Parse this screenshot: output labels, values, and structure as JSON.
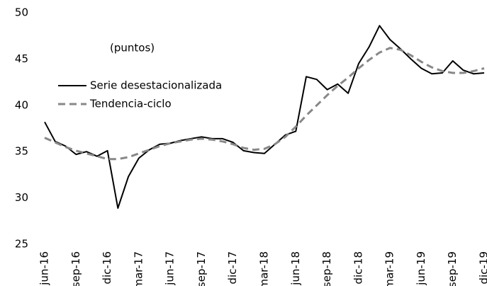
{
  "chart_data": {
    "type": "line",
    "annotation": "(puntos)",
    "categories": [
      "jun-16",
      null,
      null,
      "sep-16",
      null,
      null,
      "dic-16",
      null,
      null,
      "mar-17",
      null,
      null,
      "jun-17",
      null,
      null,
      "sep-17",
      null,
      null,
      "dic-17",
      null,
      null,
      "mar-18",
      null,
      null,
      "jun-18",
      null,
      null,
      "sep-18",
      null,
      null,
      "dic-18",
      null,
      null,
      "mar-19",
      null,
      null,
      "jun-19",
      null,
      null,
      "sep-19",
      null,
      null,
      "dic-19"
    ],
    "series": [
      {
        "name": "Serie desestacionalizada",
        "color": "#000000",
        "dash": false,
        "values": [
          38.2,
          36.1,
          35.6,
          34.7,
          35.0,
          34.5,
          35.1,
          28.9,
          32.3,
          34.3,
          35.2,
          35.8,
          35.9,
          36.2,
          36.4,
          36.6,
          36.4,
          36.4,
          36.0,
          35.1,
          34.9,
          34.8,
          35.8,
          36.8,
          37.2,
          43.1,
          42.8,
          41.7,
          42.3,
          41.3,
          44.5,
          46.3,
          48.6,
          47.1,
          46.1,
          45.0,
          44.0,
          43.4,
          43.5,
          44.8,
          43.8,
          43.4,
          43.5
        ]
      },
      {
        "name": "Tendencia-ciclo",
        "color": "#888888",
        "dash": true,
        "values": [
          36.5,
          36.0,
          35.5,
          35.1,
          34.8,
          34.5,
          34.2,
          34.2,
          34.4,
          34.8,
          35.2,
          35.6,
          35.9,
          36.1,
          36.3,
          36.4,
          36.3,
          36.1,
          35.8,
          35.4,
          35.2,
          35.3,
          35.8,
          36.6,
          37.7,
          38.9,
          40.0,
          41.1,
          42.1,
          43.0,
          44.0,
          44.9,
          45.7,
          46.2,
          46.0,
          45.4,
          44.7,
          44.1,
          43.7,
          43.5,
          43.5,
          43.7,
          44.0
        ]
      }
    ],
    "ylim": [
      25,
      50
    ],
    "yticks": [
      25,
      30,
      35,
      40,
      45,
      50
    ],
    "grid": false
  }
}
